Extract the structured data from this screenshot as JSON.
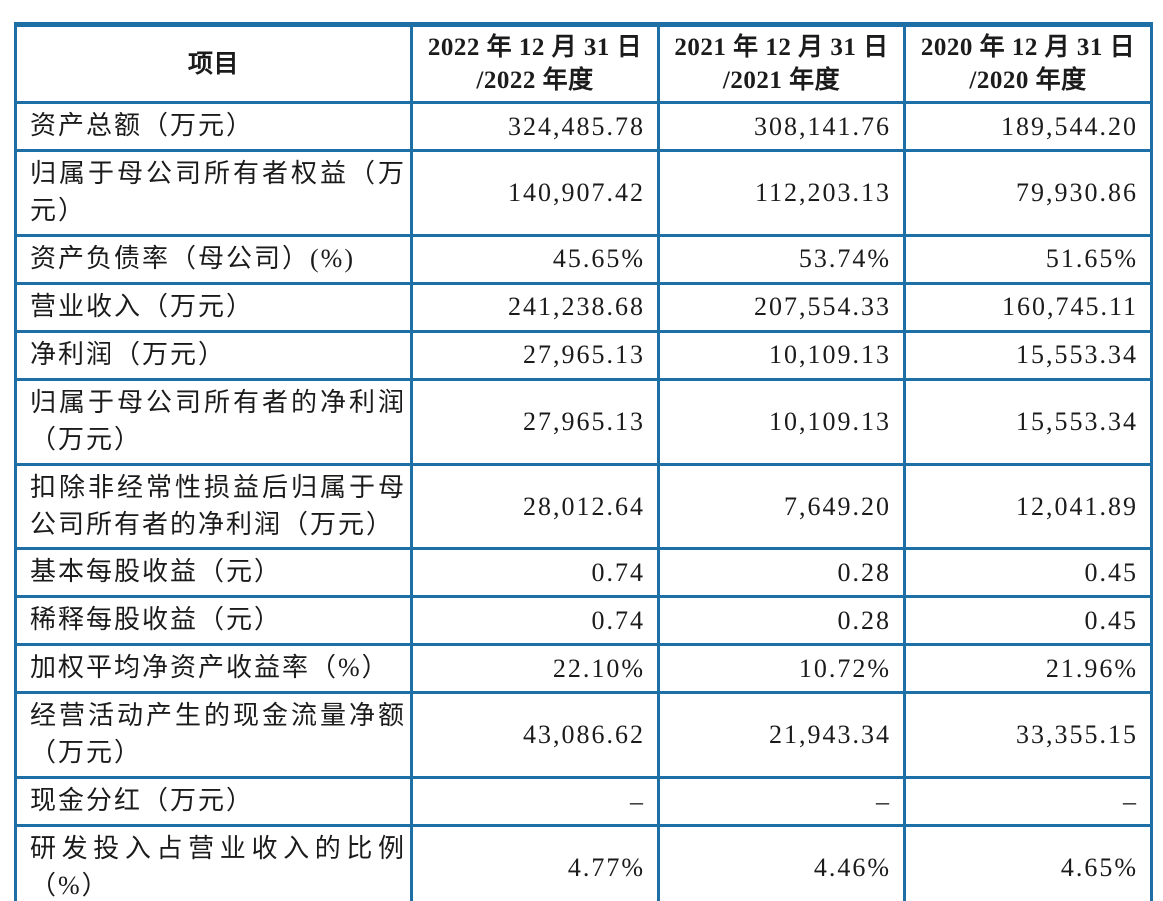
{
  "table": {
    "border_color": "#1d6fa6",
    "text_color": "#1b1b1b",
    "header": {
      "item": "项目",
      "y2022": "2022 年 12 月 31 日\n/2022 年度",
      "y2021": "2021 年 12 月 31 日\n/2021 年度",
      "y2020": "2020 年 12 月 31 日\n/2020 年度"
    },
    "rows": [
      {
        "label": "资产总额（万元）",
        "v2022": "324,485.78",
        "v2021": "308,141.76",
        "v2020": "189,544.20"
      },
      {
        "label": "归属于母公司所有者权益（万元）",
        "v2022": "140,907.42",
        "v2021": "112,203.13",
        "v2020": "79,930.86"
      },
      {
        "label": "资产负债率（母公司）(%)",
        "v2022": "45.65%",
        "v2021": "53.74%",
        "v2020": "51.65%"
      },
      {
        "label": "营业收入（万元）",
        "v2022": "241,238.68",
        "v2021": "207,554.33",
        "v2020": "160,745.11"
      },
      {
        "label": "净利润（万元）",
        "v2022": "27,965.13",
        "v2021": "10,109.13",
        "v2020": "15,553.34"
      },
      {
        "label": "归属于母公司所有者的净利润（万元）",
        "v2022": "27,965.13",
        "v2021": "10,109.13",
        "v2020": "15,553.34"
      },
      {
        "label": "扣除非经常性损益后归属于母公司所有者的净利润（万元）",
        "v2022": "28,012.64",
        "v2021": "7,649.20",
        "v2020": "12,041.89"
      },
      {
        "label": "基本每股收益（元）",
        "v2022": "0.74",
        "v2021": "0.28",
        "v2020": "0.45"
      },
      {
        "label": "稀释每股收益（元）",
        "v2022": "0.74",
        "v2021": "0.28",
        "v2020": "0.45"
      },
      {
        "label": "加权平均净资产收益率（%）",
        "v2022": "22.10%",
        "v2021": "10.72%",
        "v2020": "21.96%"
      },
      {
        "label": "经营活动产生的现金流量净额（万元）",
        "v2022": "43,086.62",
        "v2021": "21,943.34",
        "v2020": "33,355.15"
      },
      {
        "label": "现金分红（万元）",
        "v2022": "–",
        "v2021": "–",
        "v2020": "–"
      },
      {
        "label": "研发投入占营业收入的比例（%）",
        "v2022": "4.77%",
        "v2021": "4.46%",
        "v2020": "4.65%"
      }
    ]
  }
}
